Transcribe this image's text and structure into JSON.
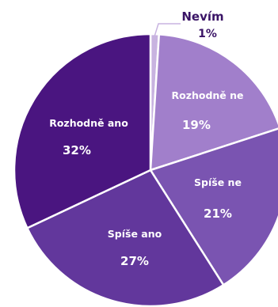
{
  "chart_data": {
    "type": "pie",
    "slices": [
      {
        "label": "Nevím",
        "value": 1,
        "value_label": "1%",
        "color": "#c8b3e0"
      },
      {
        "label": "Rozhodně ne",
        "value": 19,
        "value_label": "19%",
        "color": "#a17fcb"
      },
      {
        "label": "Spíše ne",
        "value": 21,
        "value_label": "21%",
        "color": "#7a54b1"
      },
      {
        "label": "Spíše ano",
        "value": 27,
        "value_label": "27%",
        "color": "#62379c"
      },
      {
        "label": "Rozhodně ano",
        "value": 32,
        "value_label": "32%",
        "color": "#4a1580"
      }
    ]
  }
}
